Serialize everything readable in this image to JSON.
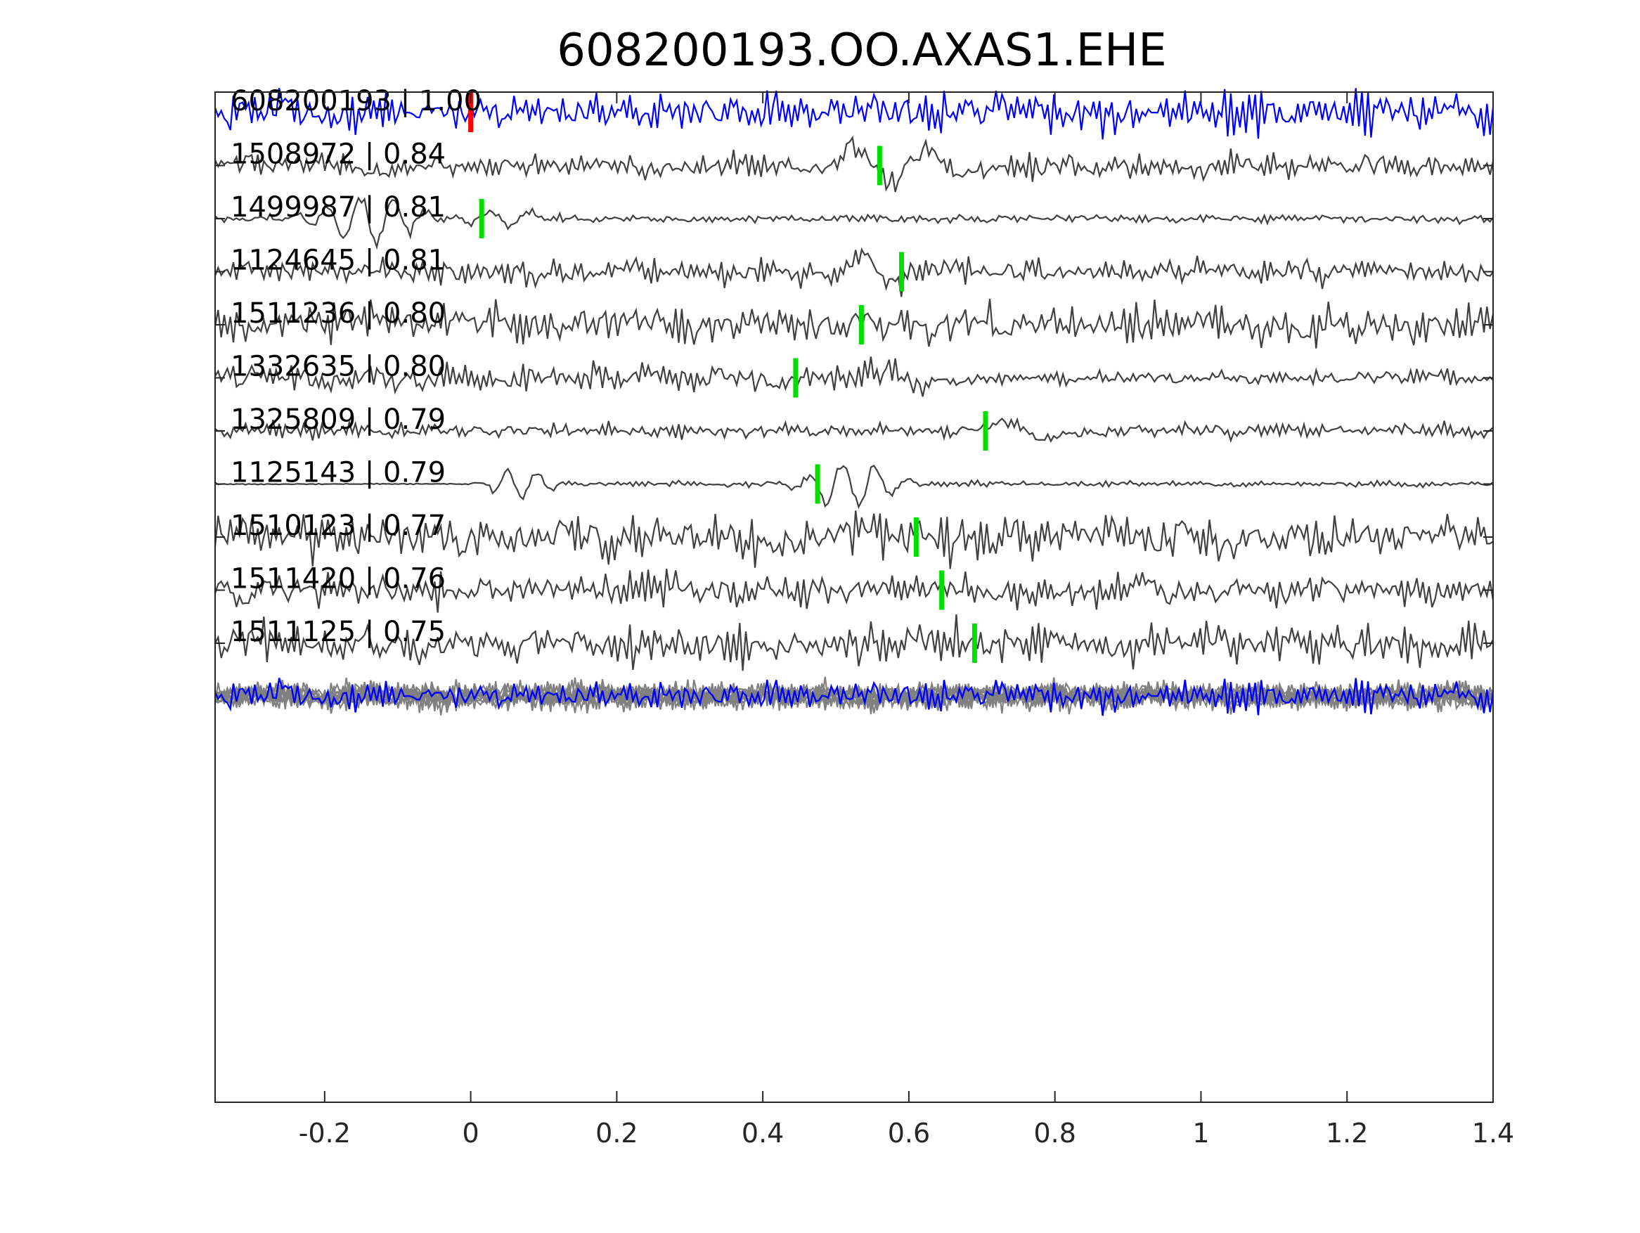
{
  "chart_data": {
    "type": "line",
    "title": "608200193.OO.AXAS1.EHE",
    "xlabel": "",
    "ylabel": "",
    "xlim": [
      -0.35,
      1.4
    ],
    "x_ticks": [
      -0.2,
      0,
      0.2,
      0.4,
      0.6,
      0.8,
      1,
      1.2,
      1.4
    ],
    "x_tick_labels": [
      "-0.2",
      "0",
      "0.2",
      "0.4",
      "0.6",
      "0.8",
      "1",
      "1.2",
      "1.4"
    ],
    "grid": false,
    "legend": "none",
    "colors": {
      "template": "#0000ff",
      "match": "#404040",
      "stack": "#808080",
      "template_pick": "#ff0000",
      "match_pick": "#00dd00"
    },
    "series": [
      {
        "label": "608200193 | 1.00",
        "pick": 0.0,
        "role": "template"
      },
      {
        "label": "1508972 | 0.84",
        "pick": 0.56,
        "role": "match"
      },
      {
        "label": "1499987 | 0.81",
        "pick": 0.015,
        "role": "match"
      },
      {
        "label": "1124645 | 0.81",
        "pick": 0.59,
        "role": "match"
      },
      {
        "label": "1511236 | 0.80",
        "pick": 0.535,
        "role": "match"
      },
      {
        "label": "1332635 | 0.80",
        "pick": 0.445,
        "role": "match"
      },
      {
        "label": "1325809 | 0.79",
        "pick": 0.705,
        "role": "match"
      },
      {
        "label": "1125143 | 0.79",
        "pick": 0.475,
        "role": "match"
      },
      {
        "label": "1510123 | 0.77",
        "pick": 0.61,
        "role": "match"
      },
      {
        "label": "1511420 | 0.76",
        "pick": 0.645,
        "role": "match"
      },
      {
        "label": "1511125 | 0.75",
        "pick": 0.69,
        "role": "match"
      }
    ]
  }
}
